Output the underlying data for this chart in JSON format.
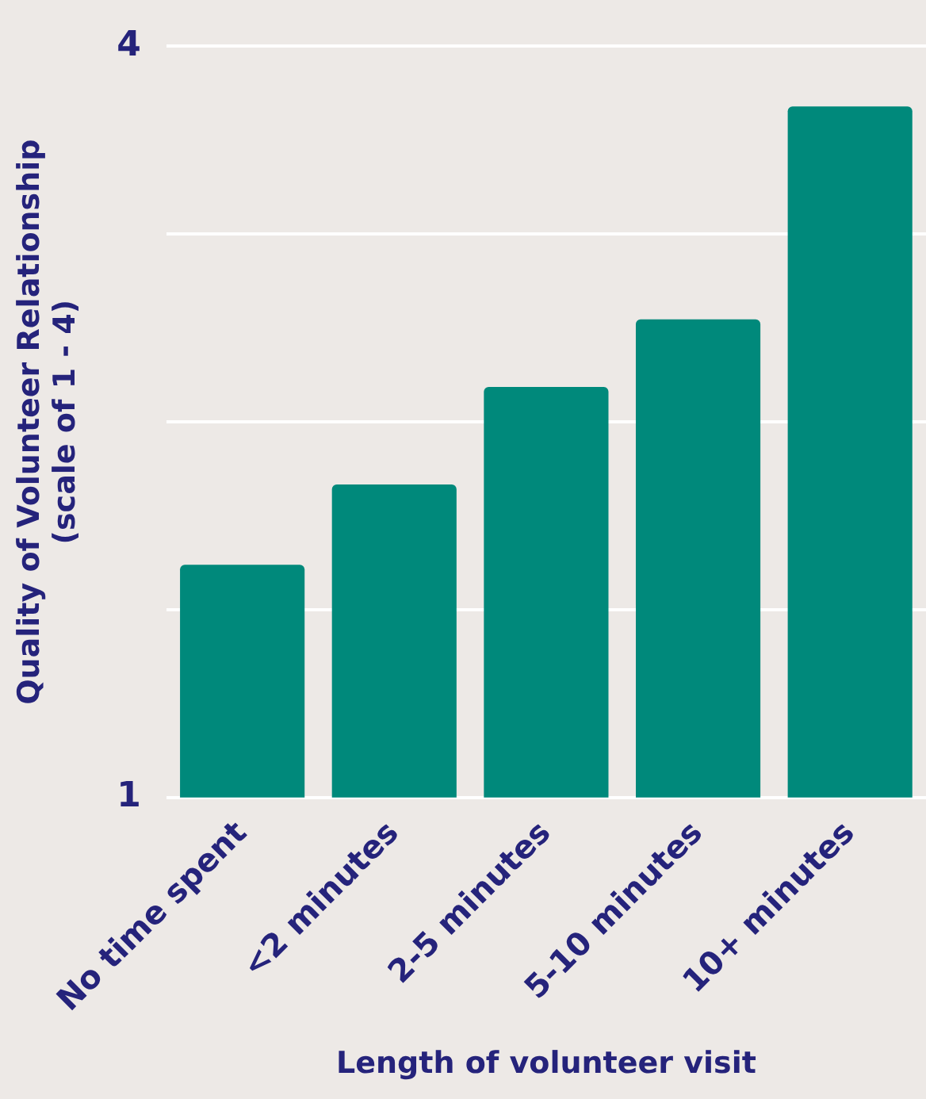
{
  "chart_data": {
    "type": "bar",
    "xlabel": "Length of volunteer visit",
    "ylabel": "Quality of Volunteer Relationship\n(scale of 1 - 4)",
    "categories": [
      "No time spent",
      "<2 minutes",
      "2-5 minutes",
      "5-10 minutes",
      "10+ minutes"
    ],
    "values": [
      1.93,
      2.25,
      2.64,
      2.91,
      3.76
    ],
    "color": "#00897b",
    "ylim": [
      1,
      4
    ],
    "yticks": [
      1,
      {
        "value": 1.75,
        "label": null
      },
      {
        "value": 2.5,
        "label": null
      },
      {
        "value": 3.25,
        "label": null
      },
      4
    ],
    "grid": "y",
    "legend": false
  }
}
